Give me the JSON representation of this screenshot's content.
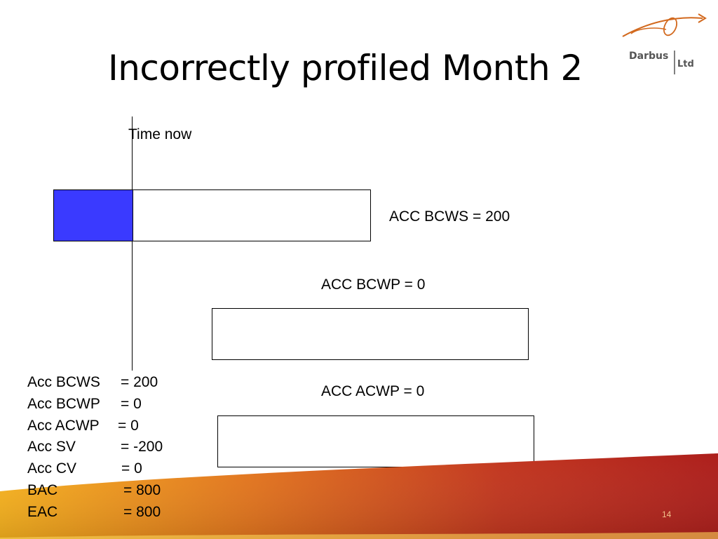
{
  "slide": {
    "title": "Incorrectly profiled Month 2",
    "page_number": "14"
  },
  "logo": {
    "company": "Darbus",
    "suffix": "Ltd"
  },
  "timeline": {
    "label": "Time now"
  },
  "bars": {
    "bcws_label": "ACC BCWS = 200",
    "bcwp_label": "ACC BCWP = 0",
    "acwp_label": "ACC ACWP = 0",
    "bcws_fill_fraction": 0.25
  },
  "summary": [
    {
      "key": "Acc BCWS",
      "value": "= 200"
    },
    {
      "key": "Acc BCWP",
      "value": "= 0"
    },
    {
      "key": "Acc ACWP",
      "value": "= 0"
    },
    {
      "key": "Acc SV",
      "value": "= -200"
    },
    {
      "key": "Acc CV",
      "value": "= 0"
    },
    {
      "key": "BAC",
      "value": "= 800"
    },
    {
      "key": "EAC",
      "value": "= 800"
    }
  ],
  "colors": {
    "fill": "#3a3aff",
    "footer_orange": "#f0a020",
    "footer_red": "#b02020"
  }
}
